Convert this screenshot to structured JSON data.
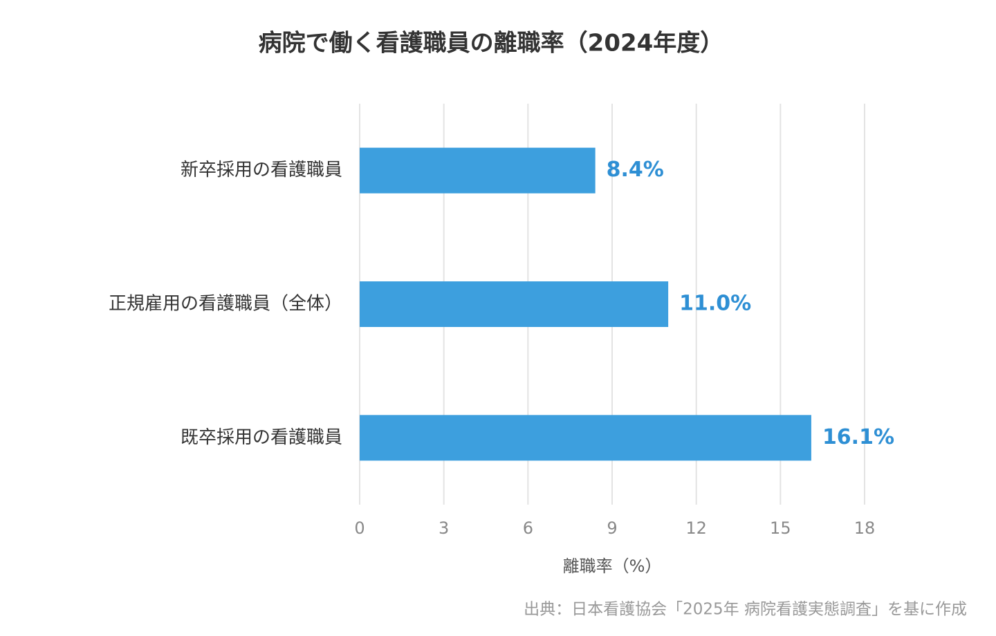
{
  "chart_data": {
    "type": "hbar",
    "title": "病院で働く看護職員の離職率（2024年度）",
    "categories": [
      "新卒採用の看護職員",
      "正規雇用の看護職員（全体）",
      "既卒採用の看護職員"
    ],
    "values": [
      8.4,
      11.0,
      16.1
    ],
    "value_labels": [
      "8.4%",
      "11.0%",
      "16.1%"
    ],
    "color": "#3d9fde",
    "xlim": [
      0,
      18
    ],
    "xticks": [
      0,
      3,
      6,
      9,
      12,
      15,
      18
    ],
    "xlabel": "離職率（%）",
    "grid": true,
    "source": "出典：日本看護協会「2025年 病院看護実態調査」を基に作成"
  }
}
